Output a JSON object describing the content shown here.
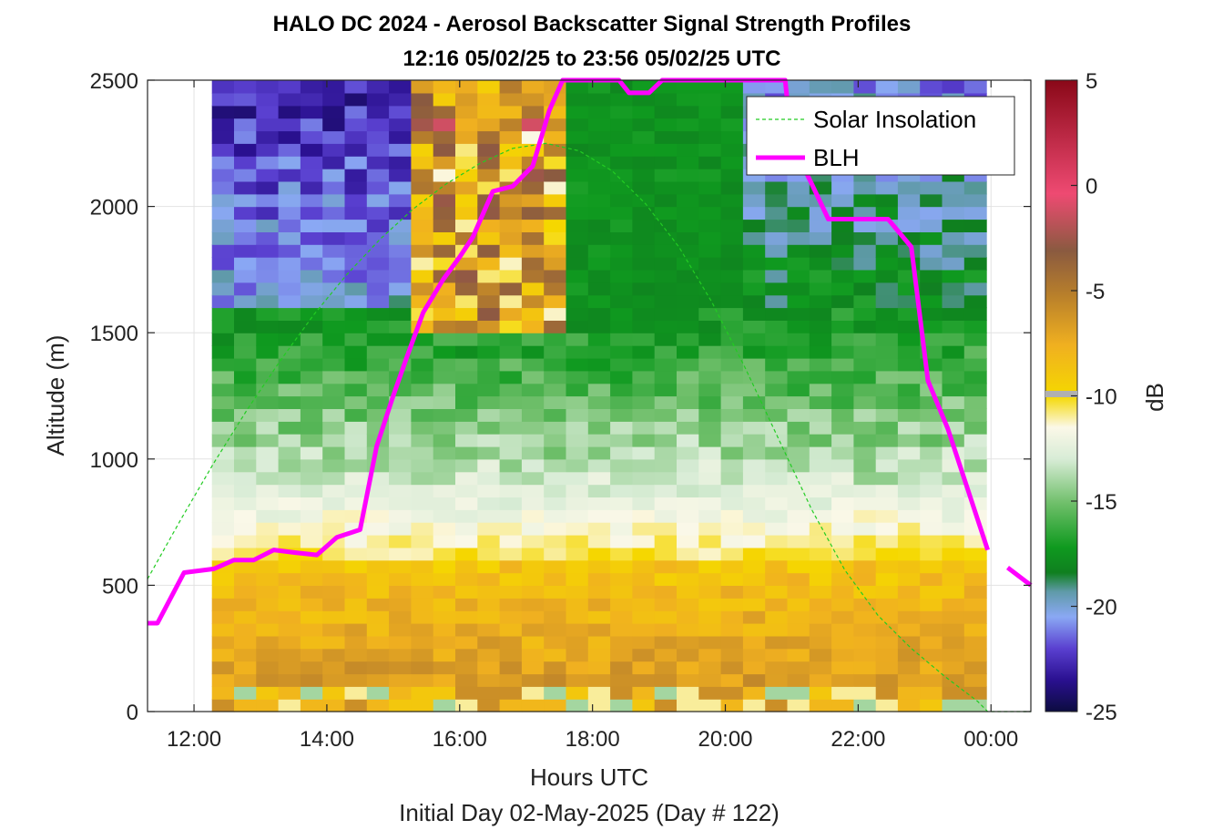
{
  "chart_data": {
    "type": "heatmap",
    "title": "HALO DC 2024 - Aerosol Backscatter Signal Strength Profiles",
    "subtitle": "12:16 05/02/25 to 23:56 05/02/25  UTC",
    "xlabel": "Hours UTC",
    "xlabel2": "Initial Day 02-May-2025 (Day # 122)",
    "ylabel": "Altitude (m)",
    "colorbar_label": "dB",
    "xlim": [
      11.3,
      24.6
    ],
    "ylim": [
      0,
      2500
    ],
    "x_ticks": [
      {
        "value": 12,
        "label": "12:00"
      },
      {
        "value": 14,
        "label": "14:00"
      },
      {
        "value": 16,
        "label": "16:00"
      },
      {
        "value": 18,
        "label": "18:00"
      },
      {
        "value": 20,
        "label": "20:00"
      },
      {
        "value": 22,
        "label": "22:00"
      },
      {
        "value": 24,
        "label": "00:00"
      }
    ],
    "y_ticks": [
      {
        "value": 0,
        "label": "0"
      },
      {
        "value": 500,
        "label": "500"
      },
      {
        "value": 1000,
        "label": "1000"
      },
      {
        "value": 1500,
        "label": "1500"
      },
      {
        "value": 2000,
        "label": "2000"
      },
      {
        "value": 2500,
        "label": "2500"
      }
    ],
    "colorbar_range": [
      -25,
      5
    ],
    "colorbar_ticks": [
      {
        "value": 5,
        "label": "5"
      },
      {
        "value": 0,
        "label": "0"
      },
      {
        "value": -5,
        "label": "-5"
      },
      {
        "value": -10,
        "label": "-10"
      },
      {
        "value": -15,
        "label": "-15"
      },
      {
        "value": -20,
        "label": "-20"
      },
      {
        "value": -25,
        "label": "-25"
      }
    ],
    "grid": true,
    "legend_position": "top-right",
    "heatmap": {
      "x_start": 12.27,
      "x_end": 23.93,
      "columns": 35,
      "y_start": 100,
      "y_end": 2500,
      "rows": 48
    },
    "series": [
      {
        "name": "Solar Insolation",
        "style": "dashed",
        "color": "#22cc22",
        "x": [
          11.3,
          11.8,
          12.3,
          12.8,
          13.3,
          13.8,
          14.3,
          14.8,
          15.3,
          15.8,
          16.3,
          16.8,
          17.3,
          17.8,
          18.3,
          18.8,
          19.3,
          19.8,
          20.3,
          20.8,
          21.3,
          21.8,
          22.3,
          22.8,
          23.3,
          23.8,
          23.95,
          24.6
        ],
        "y": [
          525,
          760,
          985,
          1195,
          1390,
          1570,
          1730,
          1870,
          1990,
          2090,
          2170,
          2230,
          2250,
          2220,
          2140,
          2010,
          1840,
          1620,
          1360,
          1080,
          800,
          560,
          380,
          250,
          140,
          40,
          0,
          0
        ]
      },
      {
        "name": "BLH",
        "style": "solid",
        "color": "#ff00ff",
        "x": [
          11.3,
          11.45,
          11.85,
          12.3,
          12.6,
          12.9,
          13.2,
          13.5,
          13.85,
          14.15,
          14.5,
          14.75,
          15.0,
          15.2,
          15.45,
          15.75,
          16.0,
          16.2,
          16.5,
          16.8,
          17.1,
          17.35,
          17.55,
          18.4,
          18.55,
          18.85,
          19.05,
          20.9,
          21.0,
          21.3,
          21.55,
          22.0,
          22.45,
          22.8,
          23.05,
          23.35,
          23.65,
          23.95
        ],
        "y": [
          350,
          350,
          550,
          565,
          600,
          600,
          640,
          630,
          620,
          690,
          720,
          1050,
          1250,
          1400,
          1580,
          1710,
          1800,
          1880,
          2060,
          2080,
          2160,
          2380,
          2500,
          2500,
          2450,
          2450,
          2500,
          2500,
          2250,
          2090,
          1950,
          1950,
          1950,
          1840,
          1310,
          1120,
          880,
          640
        ]
      },
      {
        "name": "BLH (after midnight)",
        "style": "solid",
        "color": "#ff00ff",
        "x": [
          24.25,
          24.6
        ],
        "y": [
          570,
          500
        ]
      }
    ],
    "legend": [
      "Solar Insolation",
      "BLH"
    ]
  },
  "colors": {
    "blh": "#ff00ff",
    "insolation": "#22cc22",
    "axis": "#262626",
    "grid": "#dddddd"
  }
}
